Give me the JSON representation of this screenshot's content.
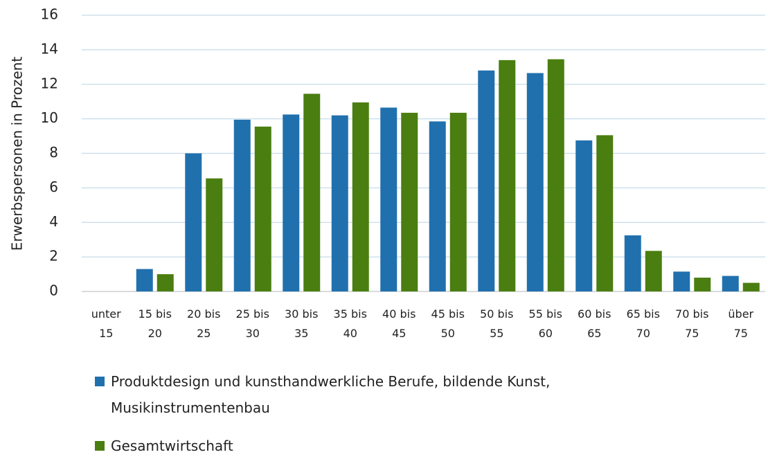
{
  "chart_data": {
    "type": "bar",
    "y_label": "Erwerbspersonen in Prozent",
    "categories": [
      "unter 15",
      "15 bis 20",
      "20 bis 25",
      "25 bis 30",
      "30 bis 35",
      "35 bis 40",
      "40 bis 45",
      "45 bis 50",
      "50 bis 55",
      "55 bis 60",
      "60 bis 65",
      "65 bis 70",
      "70 bis 75",
      "über 75"
    ],
    "series": [
      {
        "name": "Produktdesign und kunsthandwerkliche Berufe, bildende Kunst, Musikinstrumentenbau",
        "color": "#2170ae",
        "values": [
          0,
          1.3,
          8.0,
          9.95,
          10.25,
          10.2,
          10.65,
          9.85,
          12.8,
          12.65,
          8.75,
          3.25,
          1.15,
          0.9
        ]
      },
      {
        "name": "Gesamtwirtschaft",
        "color": "#4a7e10",
        "values": [
          0,
          1.0,
          6.55,
          9.55,
          11.45,
          10.95,
          10.35,
          10.35,
          13.4,
          13.45,
          9.05,
          2.35,
          0.8,
          0.5
        ]
      }
    ],
    "ylim": [
      0,
      16
    ],
    "yticks": [
      0,
      2,
      4,
      6,
      8,
      10,
      12,
      14,
      16
    ],
    "grid": true
  }
}
